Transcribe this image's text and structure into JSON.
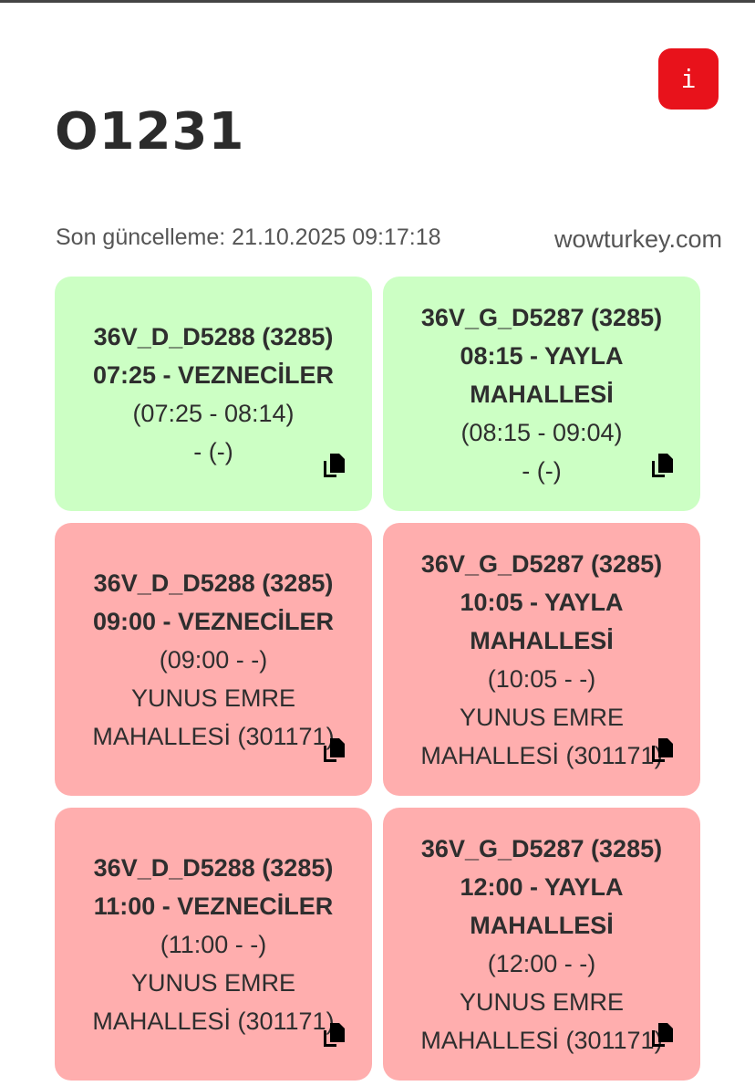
{
  "header": {
    "title": "O1231",
    "info_label": "i",
    "last_update": "Son güncelleme: 21.10.2025 09:17:18"
  },
  "colors": {
    "green": "#ccffc4",
    "red": "#ffaeae",
    "info": "#e8121b"
  },
  "cards": [
    {
      "status": "green",
      "title": "36V_D_D5288 (3285)",
      "dest": "07:25 - VEZNECİLER",
      "times": "(07:25 - 08:14)",
      "stop": "- (-)"
    },
    {
      "status": "green",
      "title": "36V_G_D5287 (3285)",
      "dest": "08:15 - YAYLA MAHALLESİ",
      "times": "(08:15 - 09:04)",
      "stop": "- (-)"
    },
    {
      "status": "red",
      "title": "36V_D_D5288 (3285)",
      "dest": "09:00 - VEZNECİLER",
      "times": "(09:00 - -)",
      "stop": "YUNUS EMRE MAHALLESİ (301171)"
    },
    {
      "status": "red",
      "title": "36V_G_D5287 (3285)",
      "dest": "10:05 - YAYLA MAHALLESİ",
      "times": "(10:05 - -)",
      "stop": "YUNUS EMRE MAHALLESİ (301171)"
    },
    {
      "status": "red",
      "title": "36V_D_D5288 (3285)",
      "dest": "11:00 - VEZNECİLER",
      "times": "(11:00 - -)",
      "stop": "YUNUS EMRE MAHALLESİ (301171)"
    },
    {
      "status": "red",
      "title": "36V_G_D5287 (3285)",
      "dest": "12:00 - YAYLA MAHALLESİ",
      "times": "(12:00 - -)",
      "stop": "YUNUS EMRE MAHALLESİ (301171)"
    }
  ],
  "watermark": "wowturkey.com"
}
